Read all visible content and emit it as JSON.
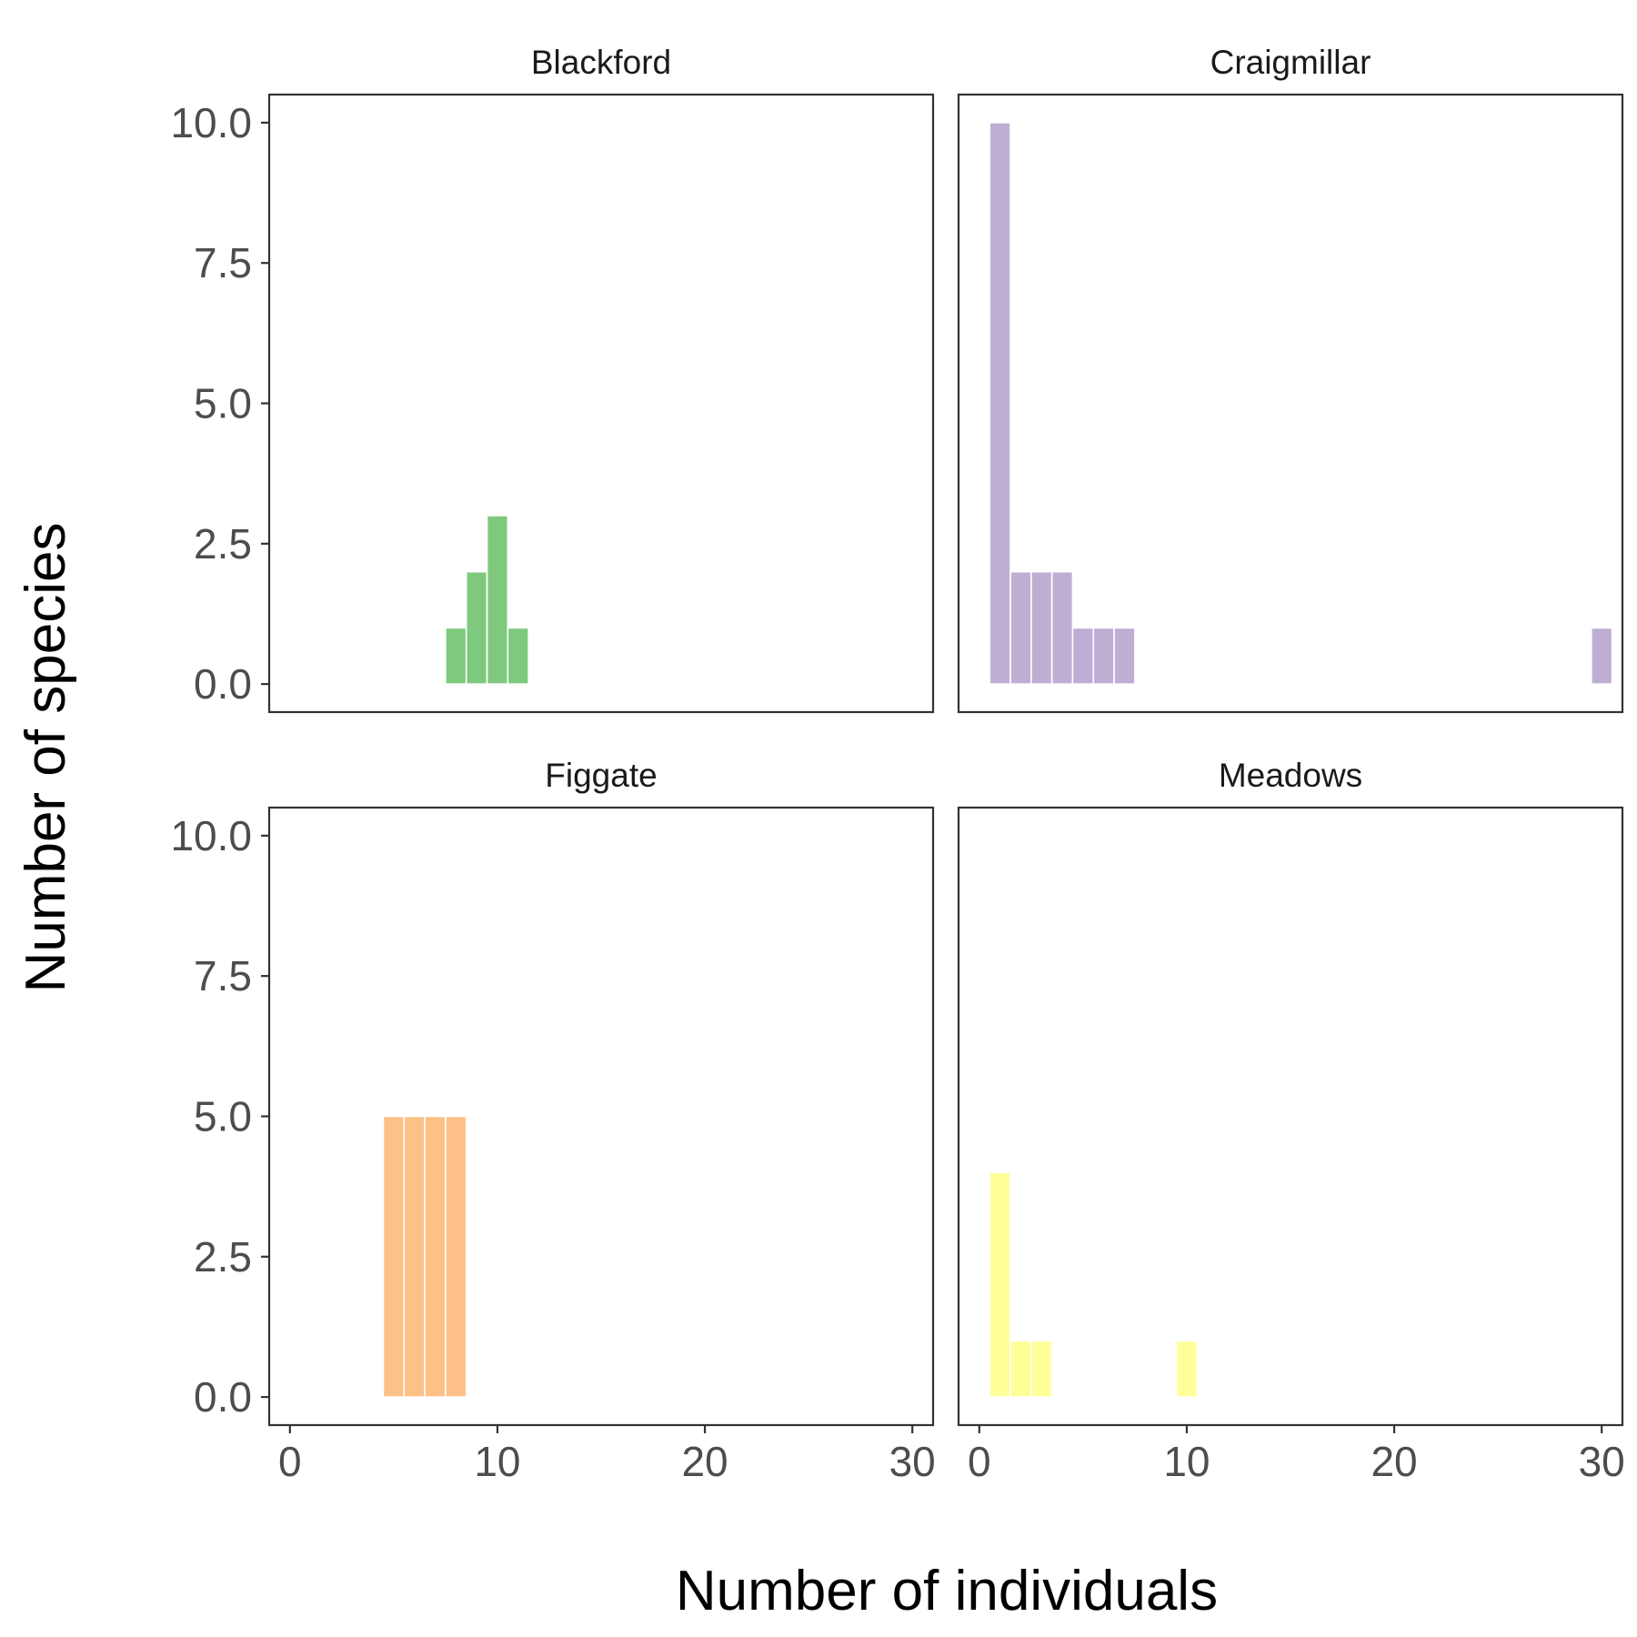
{
  "chart_data": {
    "type": "bar",
    "subtype": "faceted-histogram",
    "xlabel": "Number of individuals",
    "ylabel": "Number of species",
    "xlim": [
      -1,
      31
    ],
    "ylim": [
      -0.5,
      10.5
    ],
    "x_ticks": [
      0,
      10,
      20,
      30
    ],
    "x_tick_labels": [
      "0",
      "10",
      "20",
      "30"
    ],
    "y_ticks": [
      0,
      2.5,
      5,
      7.5,
      10
    ],
    "y_tick_labels": [
      "0.0",
      "2.5",
      "5.0",
      "7.5",
      "10.0"
    ],
    "grid": false,
    "legend": "none",
    "bin_width": 1,
    "facets": [
      {
        "title": "Blackford",
        "color": "#7FC97F",
        "bins": [
          {
            "x": 8,
            "count": 1
          },
          {
            "x": 9,
            "count": 2
          },
          {
            "x": 10,
            "count": 3
          },
          {
            "x": 11,
            "count": 1
          }
        ]
      },
      {
        "title": "Craigmillar",
        "color": "#BEAED4",
        "bins": [
          {
            "x": 1,
            "count": 10
          },
          {
            "x": 2,
            "count": 2
          },
          {
            "x": 3,
            "count": 2
          },
          {
            "x": 4,
            "count": 2
          },
          {
            "x": 5,
            "count": 1
          },
          {
            "x": 6,
            "count": 1
          },
          {
            "x": 7,
            "count": 1
          },
          {
            "x": 30,
            "count": 1
          }
        ]
      },
      {
        "title": "Figgate",
        "color": "#FDC086",
        "bins": [
          {
            "x": 5,
            "count": 5
          },
          {
            "x": 6,
            "count": 5
          },
          {
            "x": 7,
            "count": 5
          },
          {
            "x": 8,
            "count": 5
          }
        ]
      },
      {
        "title": "Meadows",
        "color": "#FFFF99",
        "bins": [
          {
            "x": 1,
            "count": 4
          },
          {
            "x": 2,
            "count": 1
          },
          {
            "x": 3,
            "count": 1
          },
          {
            "x": 10,
            "count": 1
          }
        ]
      }
    ]
  }
}
